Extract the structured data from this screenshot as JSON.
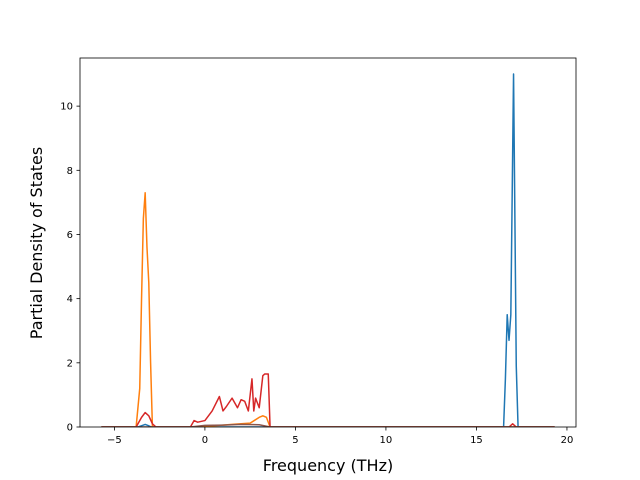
{
  "chart_data": {
    "type": "line",
    "title": "",
    "xlabel": "Frequency (THz)",
    "ylabel": "Partial Density of States",
    "xlim": [
      -6.9,
      20.5
    ],
    "ylim": [
      0,
      11.5
    ],
    "xticks": [
      -5,
      0,
      5,
      10,
      15,
      20
    ],
    "yticks": [
      0,
      2,
      4,
      6,
      8,
      10
    ],
    "xtick_labels": [
      "−5",
      "0",
      "5",
      "10",
      "15",
      "20"
    ],
    "ytick_labels": [
      "0",
      "2",
      "4",
      "6",
      "8",
      "10"
    ],
    "grid": false,
    "legend": false,
    "series": [
      {
        "color": "#1f77b4",
        "x": [
          -5.7,
          -3.7,
          -3.45,
          -3.3,
          -3.15,
          -2.95,
          16.5,
          16.6,
          16.7,
          16.8,
          16.9,
          17.0,
          17.05,
          17.1,
          17.2,
          17.3,
          17.4,
          19.3
        ],
        "y": [
          0,
          0,
          0.05,
          0.08,
          0.05,
          0,
          0,
          1.5,
          3.5,
          2.7,
          3.5,
          8.5,
          11.0,
          8.0,
          1.9,
          0,
          0,
          0
        ]
      },
      {
        "color": "#ff7f0e",
        "x": [
          -5.7,
          -3.8,
          -3.6,
          -3.5,
          -3.4,
          -3.3,
          -3.2,
          -3.1,
          -3.0,
          -2.9,
          -2.7,
          -0.5,
          0.5,
          1.0,
          1.5,
          2.0,
          2.5,
          3.0,
          3.2,
          3.4,
          3.6,
          19.3
        ],
        "y": [
          0,
          0,
          1.2,
          4.0,
          6.5,
          7.3,
          5.6,
          4.5,
          2.0,
          0,
          0,
          0,
          0.04,
          0.06,
          0.08,
          0.1,
          0.12,
          0.3,
          0.35,
          0.3,
          0,
          0
        ]
      },
      {
        "color": "#d62728",
        "x": [
          -5.7,
          -3.8,
          -3.5,
          -3.3,
          -3.1,
          -2.9,
          -2.7,
          -0.8,
          -0.6,
          -0.4,
          0.0,
          0.4,
          0.8,
          1.0,
          1.2,
          1.5,
          1.8,
          2.0,
          2.2,
          2.4,
          2.6,
          2.7,
          2.8,
          3.0,
          3.2,
          3.3,
          3.5,
          3.6,
          16.8,
          17.0,
          17.2,
          19.3
        ],
        "y": [
          0,
          0,
          0.3,
          0.45,
          0.35,
          0.1,
          0,
          0,
          0.2,
          0.15,
          0.2,
          0.5,
          0.95,
          0.5,
          0.65,
          0.9,
          0.6,
          0.85,
          0.8,
          0.5,
          1.5,
          0.5,
          0.9,
          0.6,
          1.6,
          1.65,
          1.65,
          0,
          0,
          0.1,
          0,
          0
        ]
      },
      {
        "color": "#8c564b",
        "x": [
          -5.7,
          -0.8,
          0.0,
          1.0,
          2.0,
          3.0,
          3.6,
          19.3
        ],
        "y": [
          0,
          0,
          0.05,
          0.06,
          0.08,
          0.07,
          0,
          0
        ]
      }
    ]
  }
}
